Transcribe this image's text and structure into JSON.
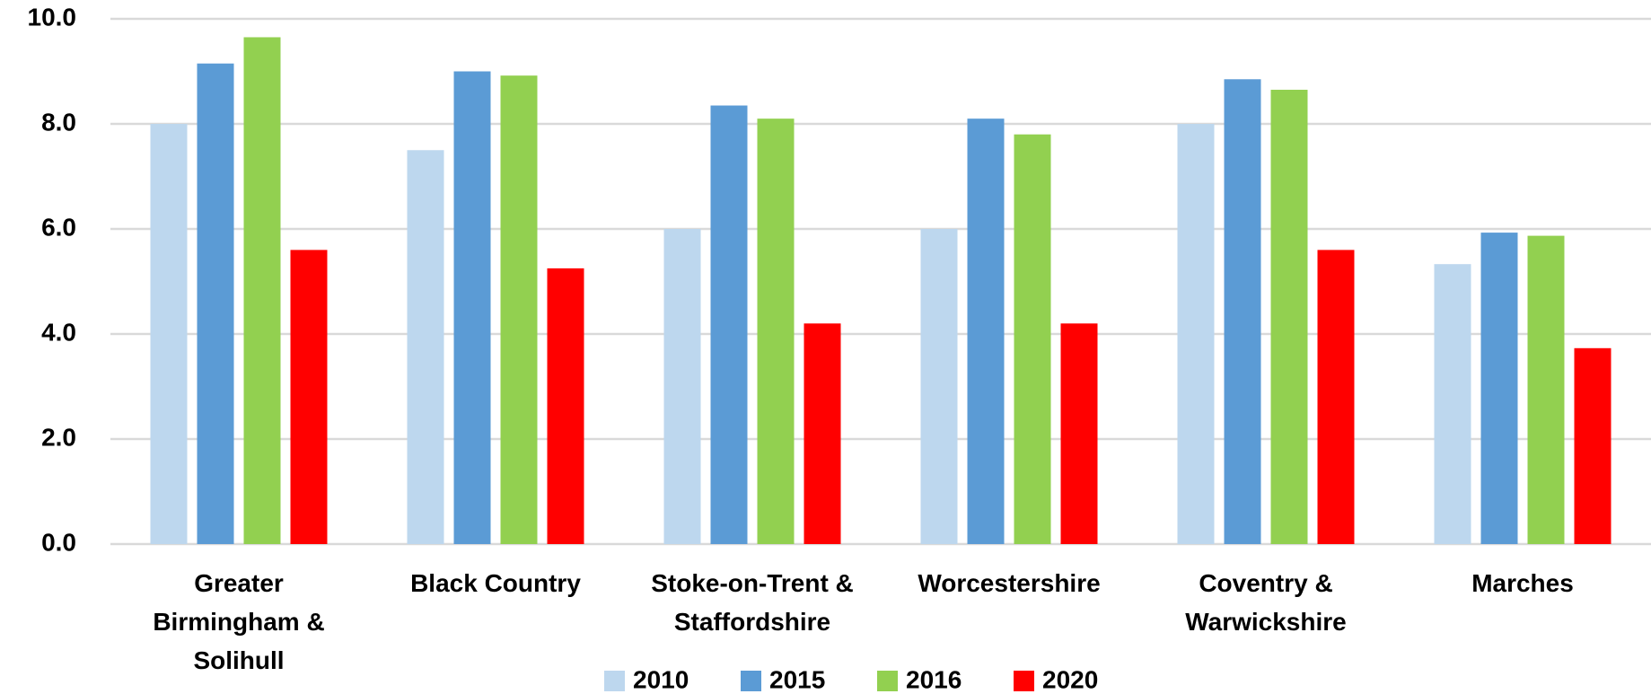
{
  "chart_data": {
    "type": "bar",
    "categories": [
      "Greater Birmingham & Solihull",
      "Black Country",
      "Stoke-on-Trent & Staffordshire",
      "Worcestershire",
      "Coventry & Warwickshire",
      "Marches"
    ],
    "series": [
      {
        "name": "2010",
        "color": "#bdd7ee",
        "values": [
          8.0,
          7.5,
          6.0,
          6.0,
          8.0,
          5.33
        ]
      },
      {
        "name": "2015",
        "color": "#5b9bd5",
        "values": [
          9.15,
          9.0,
          8.35,
          8.1,
          8.85,
          5.93
        ]
      },
      {
        "name": "2016",
        "color": "#92d050",
        "values": [
          9.65,
          8.92,
          8.1,
          7.8,
          8.65,
          5.87
        ]
      },
      {
        "name": "2020",
        "color": "#ff0000",
        "values": [
          5.6,
          5.25,
          4.2,
          4.2,
          5.6,
          3.73
        ]
      }
    ],
    "ylim": [
      0,
      10
    ],
    "yticks": [
      {
        "value": 0,
        "label": "0.0"
      },
      {
        "value": 2,
        "label": "2.0"
      },
      {
        "value": 4,
        "label": "4.0"
      },
      {
        "value": 6,
        "label": "6.0"
      },
      {
        "value": 8,
        "label": "8.0"
      },
      {
        "value": 10,
        "label": "10.0"
      }
    ],
    "grid": true,
    "legend": "bottom"
  }
}
